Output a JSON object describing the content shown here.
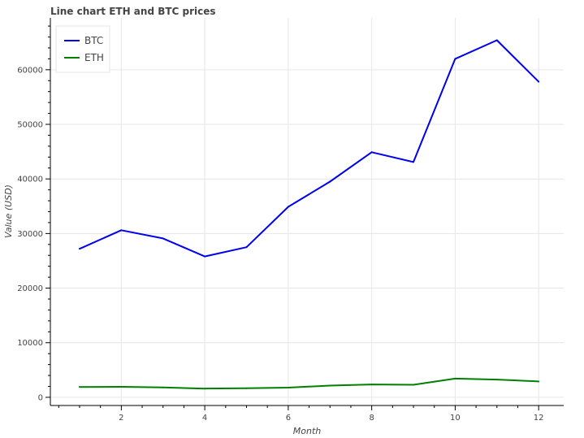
{
  "chart_data": {
    "type": "line",
    "title": "Line chart ETH and BTC prices",
    "xlabel": "Month",
    "ylabel": "Value (USD)",
    "x": [
      1,
      2,
      3,
      4,
      5,
      6,
      7,
      8,
      9,
      10,
      11,
      12
    ],
    "xlim": [
      0.3,
      12.6
    ],
    "ylim": [
      -1500,
      69500
    ],
    "x_ticks": [
      2,
      4,
      6,
      8,
      10,
      12
    ],
    "y_ticks": [
      0,
      10000,
      20000,
      30000,
      40000,
      50000,
      60000
    ],
    "grid": true,
    "legend_position": "top-left",
    "series": [
      {
        "name": "BTC",
        "color": "#0000ee",
        "values": [
          27200,
          30600,
          29100,
          25800,
          27500,
          34900,
          39500,
          44900,
          43100,
          62000,
          65400,
          57800
        ]
      },
      {
        "name": "ETH",
        "color": "#008000",
        "values": [
          1900,
          1920,
          1800,
          1600,
          1650,
          1780,
          2150,
          2350,
          2300,
          3420,
          3250,
          2900
        ]
      }
    ]
  }
}
